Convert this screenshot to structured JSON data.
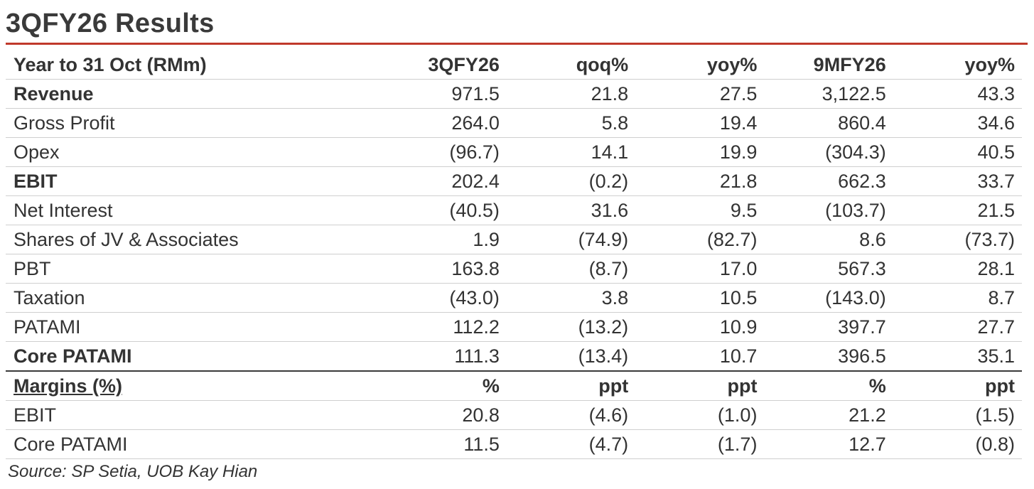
{
  "title": "3QFY26 Results",
  "columns": [
    "Year to 31 Oct (RMm)",
    "3QFY26",
    "qoq%",
    "yoy%",
    "9MFY26",
    "yoy%"
  ],
  "rows": [
    {
      "label": "Revenue",
      "bold": true,
      "values": [
        "971.5",
        "21.8",
        "27.5",
        "3,122.5",
        "43.3"
      ]
    },
    {
      "label": "Gross Profit",
      "bold": false,
      "values": [
        "264.0",
        "5.8",
        "19.4",
        "860.4",
        "34.6"
      ]
    },
    {
      "label": "Opex",
      "bold": false,
      "values": [
        "(96.7)",
        "14.1",
        "19.9",
        "(304.3)",
        "40.5"
      ]
    },
    {
      "label": "EBIT",
      "bold": true,
      "values": [
        "202.4",
        "(0.2)",
        "21.8",
        "662.3",
        "33.7"
      ]
    },
    {
      "label": "Net Interest",
      "bold": false,
      "values": [
        "(40.5)",
        "31.6",
        "9.5",
        "(103.7)",
        "21.5"
      ]
    },
    {
      "label": "Shares of JV & Associates",
      "bold": false,
      "values": [
        "1.9",
        "(74.9)",
        "(82.7)",
        "8.6",
        "(73.7)"
      ]
    },
    {
      "label": "PBT",
      "bold": false,
      "values": [
        "163.8",
        "(8.7)",
        "17.0",
        "567.3",
        "28.1"
      ]
    },
    {
      "label": "Taxation",
      "bold": false,
      "values": [
        "(43.0)",
        "3.8",
        "10.5",
        "(143.0)",
        "8.7"
      ]
    },
    {
      "label": "PATAMI",
      "bold": false,
      "values": [
        "112.2",
        "(13.2)",
        "10.9",
        "397.7",
        "27.7"
      ]
    },
    {
      "label": "Core PATAMI",
      "bold": true,
      "values": [
        "111.3",
        "(13.4)",
        "10.7",
        "396.5",
        "35.1"
      ]
    }
  ],
  "margins": {
    "header": {
      "label": "Margins (%)",
      "values": [
        "%",
        "ppt",
        "ppt",
        "%",
        "ppt"
      ]
    },
    "rows": [
      {
        "label": "EBIT",
        "values": [
          "20.8",
          "(4.6)",
          "(1.0)",
          "21.2",
          "(1.5)"
        ]
      },
      {
        "label": "Core PATAMI",
        "values": [
          "11.5",
          "(4.7)",
          "(1.7)",
          "12.7",
          "(0.8)"
        ]
      }
    ]
  },
  "source": "Source: SP Setia, UOB Kay Hian",
  "colors": {
    "accent_rule": "#c0392b",
    "text": "#333333",
    "grid": "#cfcfcf"
  }
}
